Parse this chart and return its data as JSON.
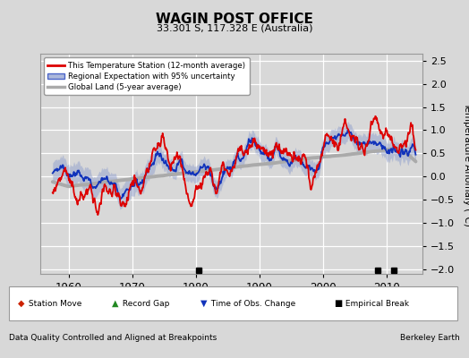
{
  "title": "WAGIN POST OFFICE",
  "subtitle": "33.301 S, 117.328 E (Australia)",
  "ylabel": "Temperature Anomaly (°C)",
  "xlabel_bottom": "Data Quality Controlled and Aligned at Breakpoints",
  "xlabel_right": "Berkeley Earth",
  "ylim": [
    -2.1,
    2.65
  ],
  "xlim": [
    1955.5,
    2015.5
  ],
  "yticks": [
    -2,
    -1.5,
    -1,
    -0.5,
    0,
    0.5,
    1,
    1.5,
    2,
    2.5
  ],
  "xticks": [
    1960,
    1970,
    1980,
    1990,
    2000,
    2010
  ],
  "background_color": "#d8d8d8",
  "plot_bg_color": "#d8d8d8",
  "grid_color": "#ffffff",
  "empirical_breaks": [
    1980.5,
    2008.5,
    2011.0
  ],
  "red_line_color": "#dd0000",
  "blue_line_color": "#1133bb",
  "blue_fill_color": "#8899cc",
  "gray_line_color": "#aaaaaa",
  "legend_marker_box_color": "#cccccc"
}
